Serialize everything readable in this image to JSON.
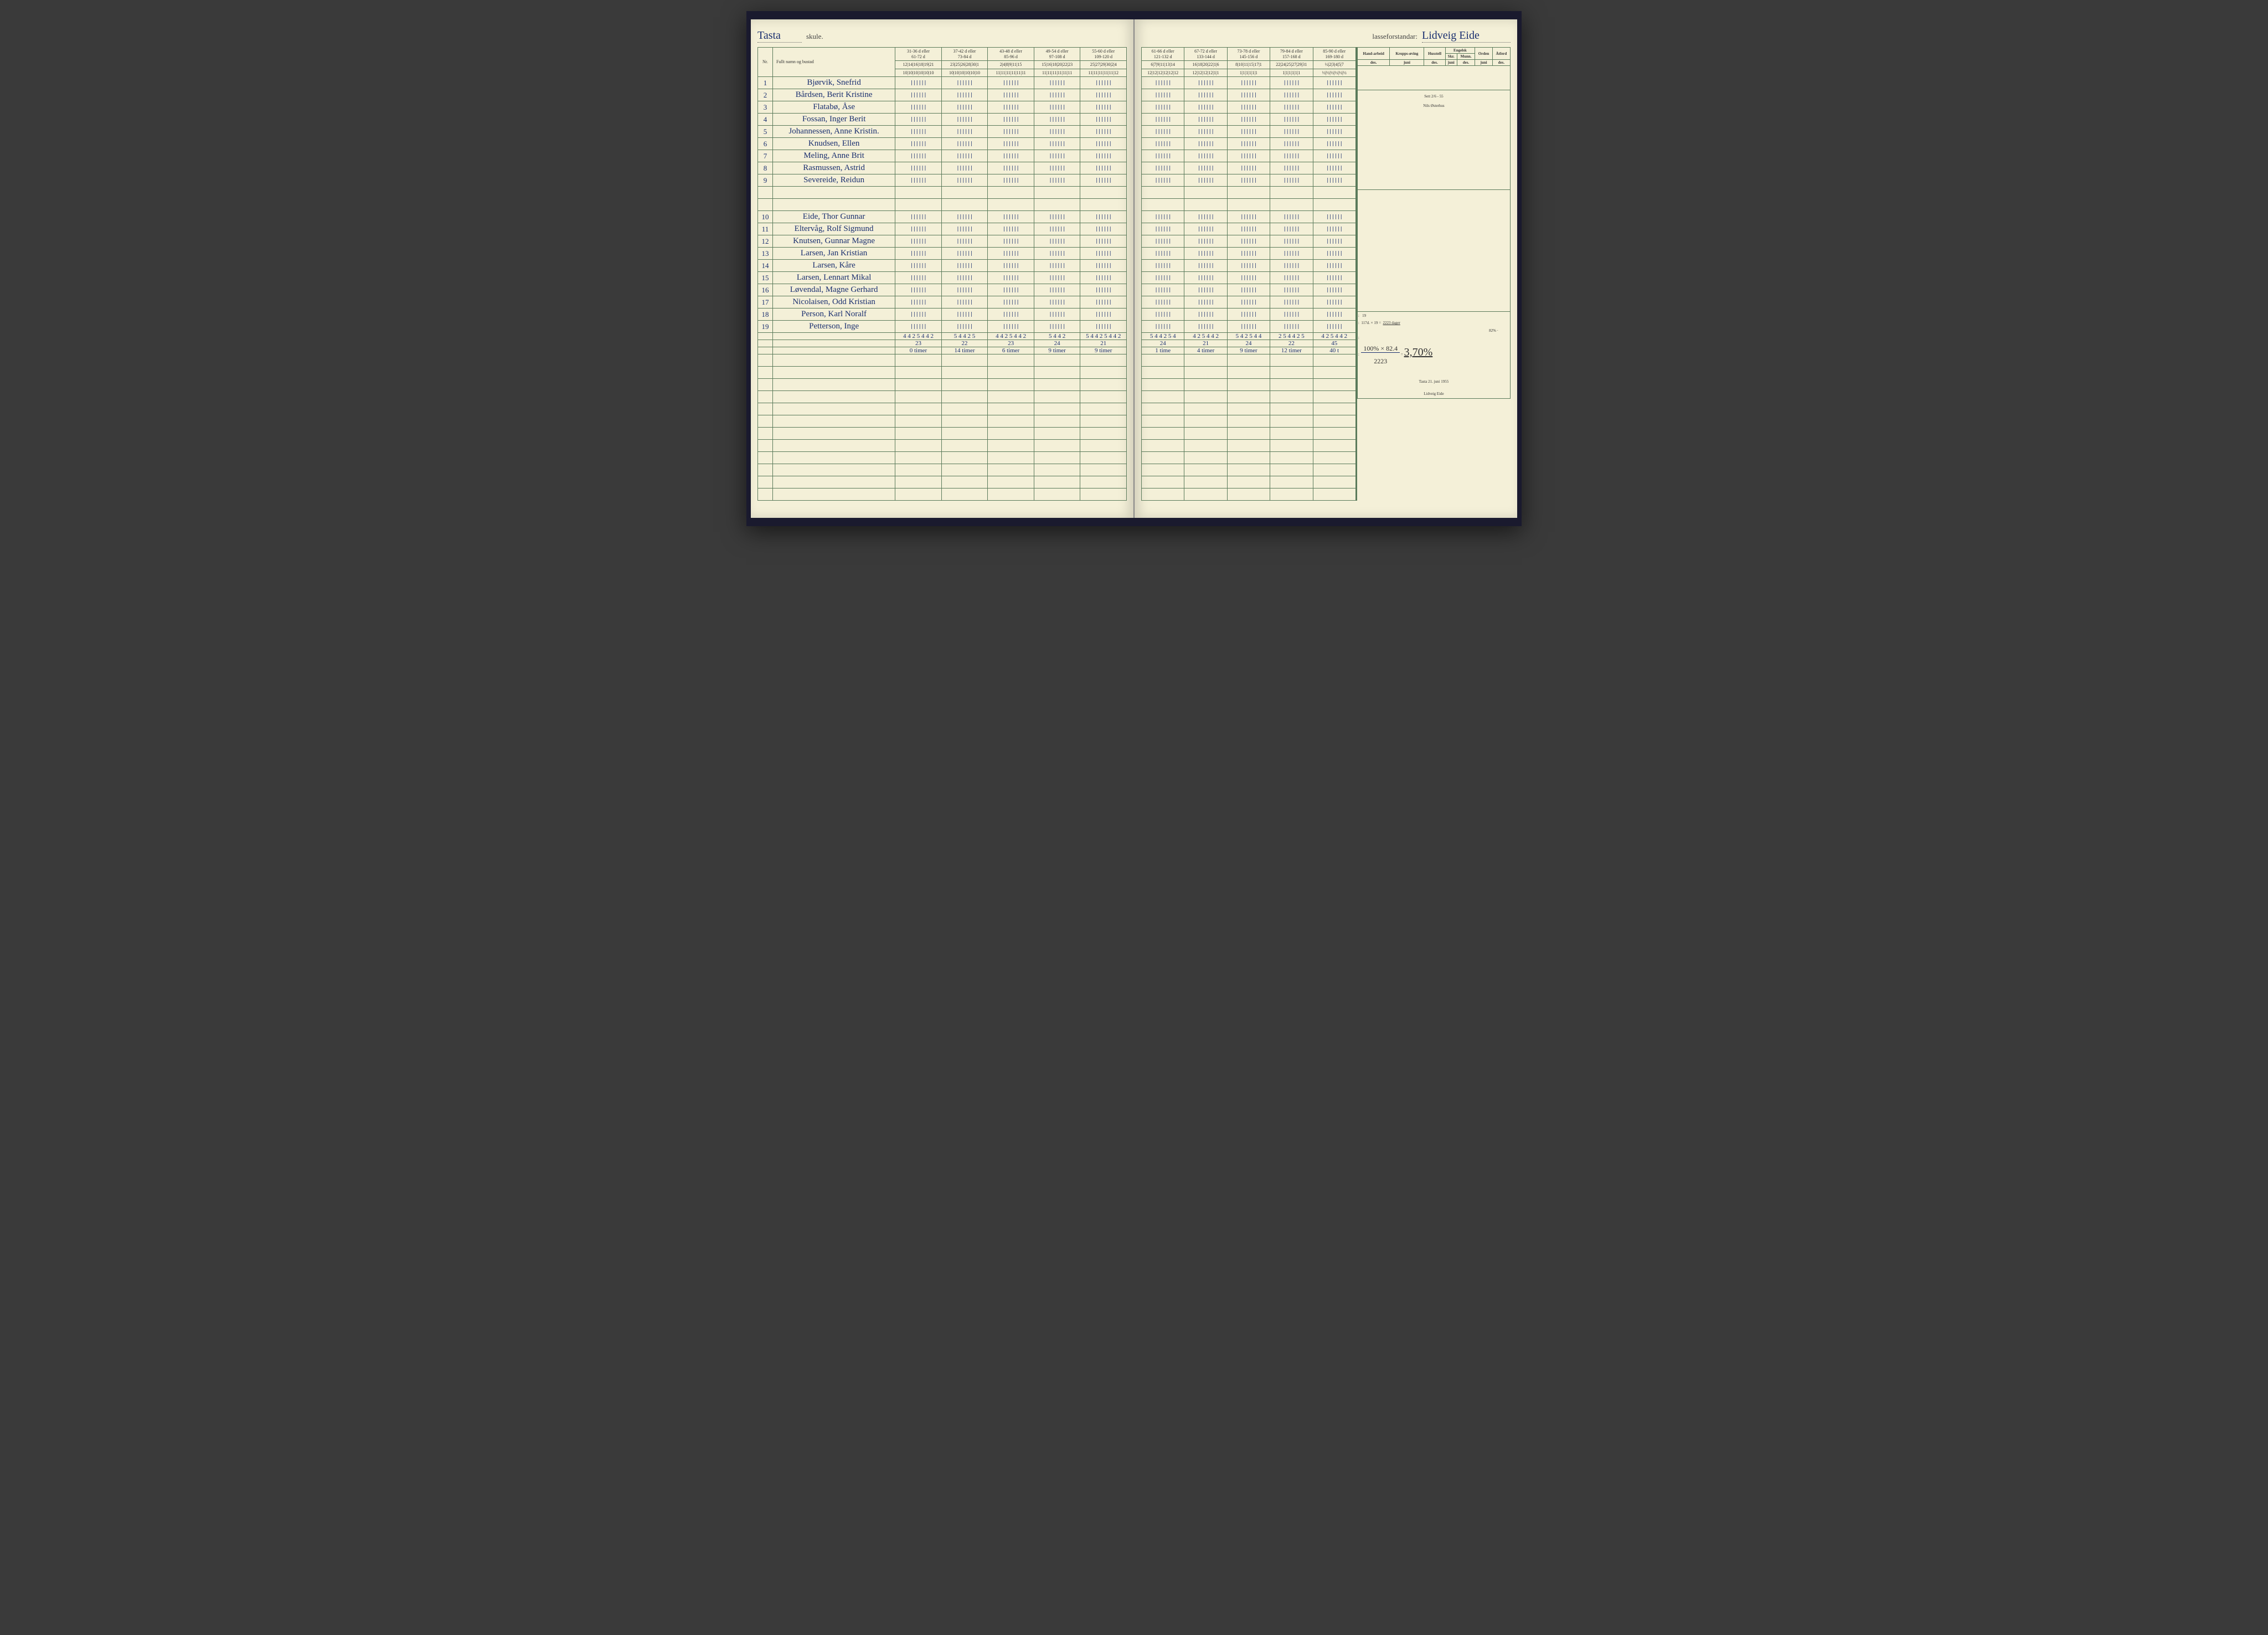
{
  "school_name": "Tasta",
  "school_label": "skule.",
  "teacher_label": "lasseforstandar:",
  "teacher_name": "Lidveig Eide",
  "columns": {
    "nr": "Nr.",
    "name": "Fullt namn og bustad"
  },
  "week_headers_left": [
    {
      "top": "31-36 d eller",
      "bottom": "61-72 d",
      "days": "12|14|16|18|19|21",
      "days2": "10|10|10|10|10|10"
    },
    {
      "top": "37-42 d eller",
      "bottom": "73-84 d",
      "days": "23|25|26|28|30|1",
      "days2": "10|10|10|10|10|10"
    },
    {
      "top": "43-48 d eller",
      "bottom": "85-96 d",
      "days": "2|4|8|9|11|15",
      "days2": "11|11|11|11|11|11"
    },
    {
      "top": "49-54 d eller",
      "bottom": "97-108 d",
      "days": "15|16|18|20|22|23",
      "days2": "11|11|11|11|11|11"
    },
    {
      "top": "55-60 d eller",
      "bottom": "109-120 d",
      "days": "25|27|29|30|2|4",
      "days2": "11|11|11|11|11|12"
    }
  ],
  "week_headers_right": [
    {
      "top": "61-66 d eller",
      "bottom": "121-132 d",
      "days": "6|7|9|11|13|14",
      "days2": "12|12|12|12|12|12"
    },
    {
      "top": "67-72 d eller",
      "bottom": "133-144 d",
      "days": "16|18|20|22|1|6",
      "days2": "12|12|12|12|1|1"
    },
    {
      "top": "73-78 d eller",
      "bottom": "145-156 d",
      "days": "8|10|11|15|17|1",
      "days2": "1|1|1|1|1|1"
    },
    {
      "top": "79-84 d eller",
      "bottom": "157-168 d",
      "days": "22|24|25|27|29|31",
      "days2": "1|1|1|1|1|1"
    },
    {
      "top": "85-90 d eller",
      "bottom": "169-180 d",
      "days": "½|2|3|4|5|7",
      "days2": "½|½|½|½|½|½"
    }
  ],
  "grade_headers": [
    "Hand-arbeid",
    "Kropps-øving",
    "Husstell",
    "Engelsk Skr.",
    "Engelsk Munn.",
    "Orden",
    "Åtferd"
  ],
  "grade_sub": [
    "des.",
    "juni"
  ],
  "students": [
    {
      "nr": "1",
      "name": "Bjørvik, Snefrid"
    },
    {
      "nr": "2",
      "name": "Bårdsen, Berit Kristine"
    },
    {
      "nr": "3",
      "name": "Flatabø, Åse"
    },
    {
      "nr": "4",
      "name": "Fossan, Inger Berit"
    },
    {
      "nr": "5",
      "name": "Johannessen, Anne Kristin."
    },
    {
      "nr": "6",
      "name": "Knudsen, Ellen"
    },
    {
      "nr": "7",
      "name": "Meling, Anne Brit"
    },
    {
      "nr": "8",
      "name": "Rasmussen, Astrid"
    },
    {
      "nr": "9",
      "name": "Severeide, Reidun"
    },
    {
      "nr": "",
      "name": ""
    },
    {
      "nr": "",
      "name": ""
    },
    {
      "nr": "10",
      "name": "Eide, Thor Gunnar"
    },
    {
      "nr": "11",
      "name": "Eltervåg, Rolf Sigmund"
    },
    {
      "nr": "12",
      "name": "Knutsen, Gunnar Magne"
    },
    {
      "nr": "13",
      "name": "Larsen, Jan Kristian"
    },
    {
      "nr": "14",
      "name": "Larsen, Kåre"
    },
    {
      "nr": "15",
      "name": "Larsen, Lennart Mikal"
    },
    {
      "nr": "16",
      "name": "Løvendal, Magne Gerhard"
    },
    {
      "nr": "17",
      "name": "Nicolaisen, Odd Kristian"
    },
    {
      "nr": "18",
      "name": "Person, Karl Noralf"
    },
    {
      "nr": "19",
      "name": "Petterson, Inge"
    }
  ],
  "tally_mark": "||||||",
  "sums_left_row1": [
    "4 4 2 5 4 4 2",
    "5 4 4 2 5",
    "4 4 2 5 4 4 2",
    "5 4 4 2",
    "5 4 4 2 5 4 4 2"
  ],
  "sums_left_row2": [
    "",
    "23",
    "22",
    "23",
    "24",
    "21"
  ],
  "sums_left_row3": [
    "",
    "0 timer",
    "14 timer",
    "6 timer",
    "9 timer",
    "9 timer"
  ],
  "sums_right_row1": [
    "5 4 4 2 5 4",
    "4 2 5 4 4 2",
    "5 4 2 5 4 4",
    "2 5 4 4 2 5",
    "4 2 5 4 4 2"
  ],
  "sums_right_row2": [
    "24",
    "21",
    "24",
    "22",
    "45"
  ],
  "sums_right_row3": [
    "1 time",
    "4 timer",
    "9 timer",
    "12 timer",
    "40 t"
  ],
  "notes": {
    "sett": "Sett 2/6 - 55",
    "sign": "Nils Østerhus"
  },
  "calc": {
    "line1_a": ":",
    "line1_b": "19",
    "line2_a": ":",
    "line2_b": "117d. × 19 =",
    "line2_c": "2223 dager",
    "line2_d": "82% ·",
    "line3_a": ":",
    "line4_top": "100% × 82.4",
    "line4_bot": "2223",
    "line4_eq": "=",
    "line4_res": "3,70%",
    "place_date": "Tasta 21. juni 1955",
    "signature": "Lidveig Eide"
  },
  "colors": {
    "page": "#f4f0d8",
    "ink": "#1a2f6f",
    "grid": "#5a7a5a",
    "cover": "#1a1a2e"
  }
}
